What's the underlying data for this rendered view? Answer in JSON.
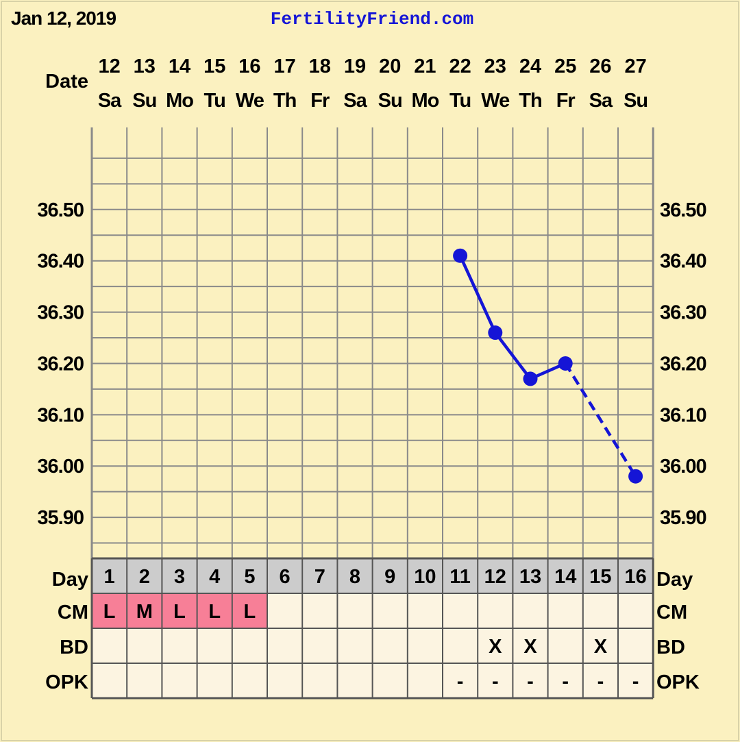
{
  "header": {
    "date_label": "Jan 12, 2019",
    "site": "FertilityFriend.com"
  },
  "row_labels": {
    "date": "Date",
    "day": "Day",
    "cm": "CM",
    "bd": "BD",
    "opk": "OPK"
  },
  "colors": {
    "background": "#fbf1c0",
    "line": "#1515d6",
    "grid": "#8a8a8a",
    "day_row": "#cccccc",
    "cell": "#fcf4e1",
    "cm_highlight": "#f77f97",
    "site_text": "#1515d6"
  },
  "chart_data": {
    "type": "line",
    "ylim": [
      35.82,
      36.66
    ],
    "yticks": [
      "36.50",
      "36.40",
      "36.30",
      "36.20",
      "36.10",
      "36.00",
      "35.90"
    ],
    "ytick_values": [
      36.5,
      36.4,
      36.3,
      36.2,
      36.1,
      36.0,
      35.9
    ],
    "dates": [
      "12",
      "13",
      "14",
      "15",
      "16",
      "17",
      "18",
      "19",
      "20",
      "21",
      "22",
      "23",
      "24",
      "25",
      "26",
      "27"
    ],
    "weekdays": [
      "Sa",
      "Su",
      "Mo",
      "Tu",
      "We",
      "Th",
      "Fr",
      "Sa",
      "Su",
      "Mo",
      "Tu",
      "We",
      "Th",
      "Fr",
      "Sa",
      "Su"
    ],
    "cycle_days": [
      "1",
      "2",
      "3",
      "4",
      "5",
      "6",
      "7",
      "8",
      "9",
      "10",
      "11",
      "12",
      "13",
      "14",
      "15",
      "16"
    ],
    "temps": [
      null,
      null,
      null,
      null,
      null,
      null,
      null,
      null,
      null,
      null,
      36.41,
      36.26,
      36.17,
      36.2,
      null,
      35.98
    ],
    "cm": [
      "L",
      "M",
      "L",
      "L",
      "L",
      "",
      "",
      "",
      "",
      "",
      "",
      "",
      "",
      "",
      "",
      ""
    ],
    "bd": [
      "",
      "",
      "",
      "",
      "",
      "",
      "",
      "",
      "",
      "",
      "",
      "X",
      "X",
      "",
      "X",
      ""
    ],
    "opk": [
      "",
      "",
      "",
      "",
      "",
      "",
      "",
      "",
      "",
      "",
      "-",
      "-",
      "-",
      "-",
      "-",
      "-"
    ]
  }
}
